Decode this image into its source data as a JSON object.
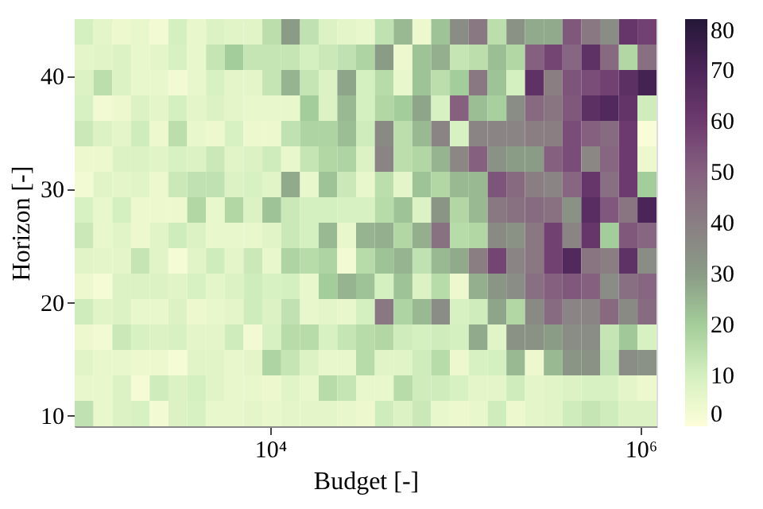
{
  "chart_data": {
    "type": "heatmap",
    "xlabel": "Budget [-]",
    "ylabel": "Horizon [-]",
    "x": [
      988,
      1250,
      1580,
      1990,
      2510,
      3170,
      4010,
      5060,
      6390,
      8070,
      10200,
      12900,
      16300,
      20500,
      25900,
      32700,
      41300,
      52200,
      65900,
      83200,
      105000,
      133000,
      168000,
      212000,
      267000,
      338000,
      426000,
      538000,
      680000,
      859000,
      1080000
    ],
    "y": [
      43.9,
      41.6,
      39.4,
      37.1,
      34.9,
      32.6,
      30.4,
      28.1,
      25.9,
      23.6,
      21.4,
      19.1,
      16.9,
      14.6,
      12.4,
      10.1
    ],
    "xlim": [
      880,
      1220000
    ],
    "xticks": [
      {
        "value": 10000,
        "label": "10⁴"
      },
      {
        "value": 1000000,
        "label": "10⁶"
      }
    ],
    "log": "x",
    "ylim": [
      9,
      45
    ],
    "yticks": [
      10,
      20,
      30,
      40
    ],
    "clim": [
      0,
      80
    ],
    "cticks": [
      0,
      10,
      20,
      30,
      40,
      50,
      60,
      70,
      80
    ],
    "cells": [
      [
        10,
        6,
        4,
        5,
        3,
        10,
        5,
        8,
        7,
        7,
        15,
        30,
        14,
        8,
        6,
        5,
        14,
        24,
        4,
        22,
        35,
        42,
        15,
        33,
        27,
        27,
        52,
        42,
        35,
        62,
        58
      ],
      [
        6,
        7,
        8,
        5,
        6,
        9,
        5,
        13,
        20,
        13,
        13,
        13,
        10,
        12,
        14,
        18,
        30,
        4,
        22,
        26,
        13,
        15,
        23,
        17,
        50,
        57,
        48,
        64,
        47,
        17,
        45
      ],
      [
        8,
        15,
        8,
        5,
        5,
        3,
        5,
        9,
        6,
        6,
        13,
        25,
        13,
        8,
        28,
        10,
        16,
        5,
        22,
        15,
        20,
        42,
        22,
        10,
        64,
        40,
        53,
        55,
        58,
        65,
        72
      ],
      [
        9,
        3,
        4,
        8,
        6,
        10,
        6,
        8,
        6,
        5,
        5,
        5,
        20,
        8,
        24,
        10,
        17,
        20,
        28,
        9,
        50,
        23,
        19,
        35,
        47,
        43,
        52,
        65,
        68,
        63,
        11
      ],
      [
        12,
        8,
        6,
        11,
        4,
        15,
        5,
        4,
        9,
        4,
        4,
        14,
        18,
        18,
        23,
        11,
        36,
        15,
        24,
        38,
        9,
        38,
        38,
        38,
        40,
        40,
        55,
        50,
        46,
        60,
        1
      ],
      [
        4,
        4,
        8,
        8,
        7,
        9,
        8,
        12,
        7,
        8,
        11,
        5,
        13,
        17,
        18,
        8,
        38,
        15,
        17,
        25,
        37,
        50,
        33,
        30,
        30,
        50,
        55,
        37,
        48,
        60,
        4
      ],
      [
        3,
        7,
        6,
        7,
        4,
        12,
        14,
        14,
        8,
        9,
        7,
        27,
        5,
        22,
        12,
        5,
        15,
        6,
        22,
        17,
        24,
        24,
        53,
        47,
        40,
        38,
        48,
        62,
        45,
        60,
        20
      ],
      [
        9,
        5,
        10,
        4,
        4,
        4,
        17,
        5,
        17,
        8,
        22,
        12,
        10,
        10,
        9,
        9,
        16,
        22,
        8,
        32,
        17,
        24,
        42,
        44,
        46,
        44,
        33,
        66,
        52,
        43,
        70
      ],
      [
        12,
        5,
        7,
        4,
        7,
        11,
        8,
        5,
        5,
        5,
        7,
        12,
        10,
        24,
        5,
        25,
        26,
        17,
        26,
        44,
        16,
        17,
        36,
        33,
        42,
        58,
        38,
        62,
        20,
        52,
        48
      ],
      [
        7,
        6,
        6,
        13,
        7,
        2,
        7,
        11,
        6,
        12,
        5,
        18,
        16,
        18,
        3,
        16,
        22,
        25,
        14,
        24,
        27,
        40,
        57,
        38,
        42,
        58,
        68,
        43,
        40,
        64,
        35
      ],
      [
        4,
        2,
        8,
        8,
        8,
        7,
        9,
        6,
        8,
        11,
        9,
        10,
        5,
        20,
        25,
        22,
        10,
        22,
        8,
        16,
        4,
        26,
        32,
        35,
        45,
        50,
        52,
        50,
        35,
        45,
        48
      ],
      [
        11,
        7,
        8,
        5,
        5,
        8,
        4,
        5,
        6,
        11,
        8,
        14,
        5,
        6,
        5,
        10,
        42,
        18,
        24,
        35,
        9,
        11,
        28,
        17,
        36,
        46,
        38,
        38,
        47,
        36,
        46
      ],
      [
        4,
        3,
        12,
        9,
        8,
        9,
        6,
        6,
        11,
        3,
        9,
        16,
        16,
        9,
        13,
        16,
        17,
        11,
        10,
        11,
        10,
        27,
        7,
        33,
        33,
        30,
        35,
        35,
        13,
        21,
        9
      ],
      [
        7,
        5,
        5,
        4,
        4,
        2,
        7,
        7,
        5,
        6,
        18,
        13,
        8,
        5,
        5,
        16,
        7,
        7,
        11,
        16,
        4,
        9,
        10,
        24,
        4,
        24,
        32,
        33,
        14,
        35,
        33
      ],
      [
        5,
        5,
        8,
        2,
        11,
        8,
        10,
        7,
        5,
        5,
        4,
        7,
        5,
        16,
        13,
        5,
        5,
        16,
        11,
        11,
        9,
        6,
        6,
        11,
        6,
        7,
        8,
        9,
        9,
        6,
        4
      ],
      [
        14,
        5,
        8,
        9,
        3,
        8,
        9,
        5,
        5,
        6,
        5,
        6,
        6,
        6,
        5,
        4,
        11,
        8,
        12,
        5,
        4,
        5,
        11,
        4,
        6,
        7,
        11,
        13,
        11,
        8,
        8
      ]
    ]
  }
}
